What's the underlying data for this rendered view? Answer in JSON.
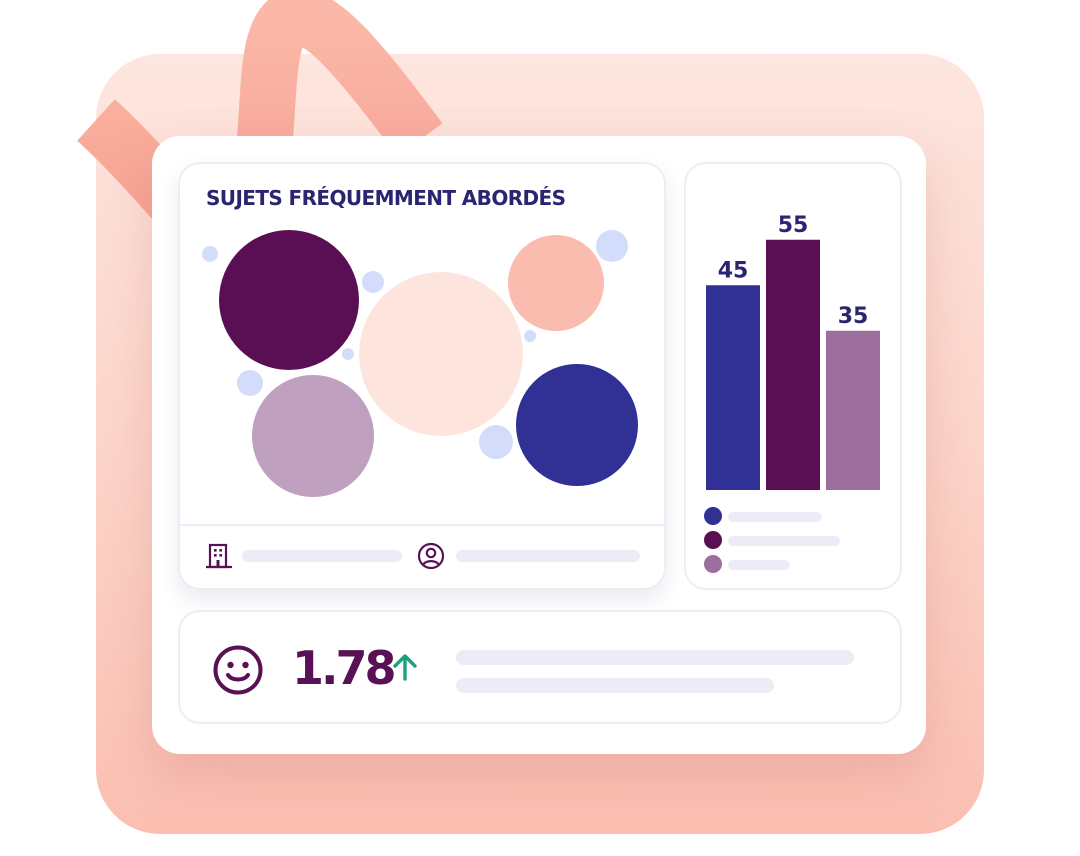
{
  "topics": {
    "title": "SUJETS FRÉQUEMMENT ABORDÉS",
    "bubbles": [
      {
        "color": "#5a0f55"
      },
      {
        "color": "#fde5de"
      },
      {
        "color": "#fbbcb0"
      },
      {
        "color": "#bfa0bf"
      },
      {
        "color": "#303095"
      }
    ],
    "footer_icons": [
      "building-icon",
      "user-icon"
    ]
  },
  "chart_data": {
    "type": "bar",
    "categories": [
      "",
      "",
      ""
    ],
    "values": [
      45,
      55,
      35
    ],
    "colors": [
      "#303095",
      "#5a0f55",
      "#9b6e9c"
    ],
    "title": "",
    "xlabel": "",
    "ylabel": ""
  },
  "score": {
    "value": "1.78",
    "trend": "up",
    "icon": "smiley-icon",
    "trend_color": "#1aa37a"
  },
  "colors": {
    "primary_text": "#2b2470",
    "accent_dark_purple": "#571154",
    "placeholder": "#ececf6",
    "background_peach": "#fcd3c8"
  }
}
